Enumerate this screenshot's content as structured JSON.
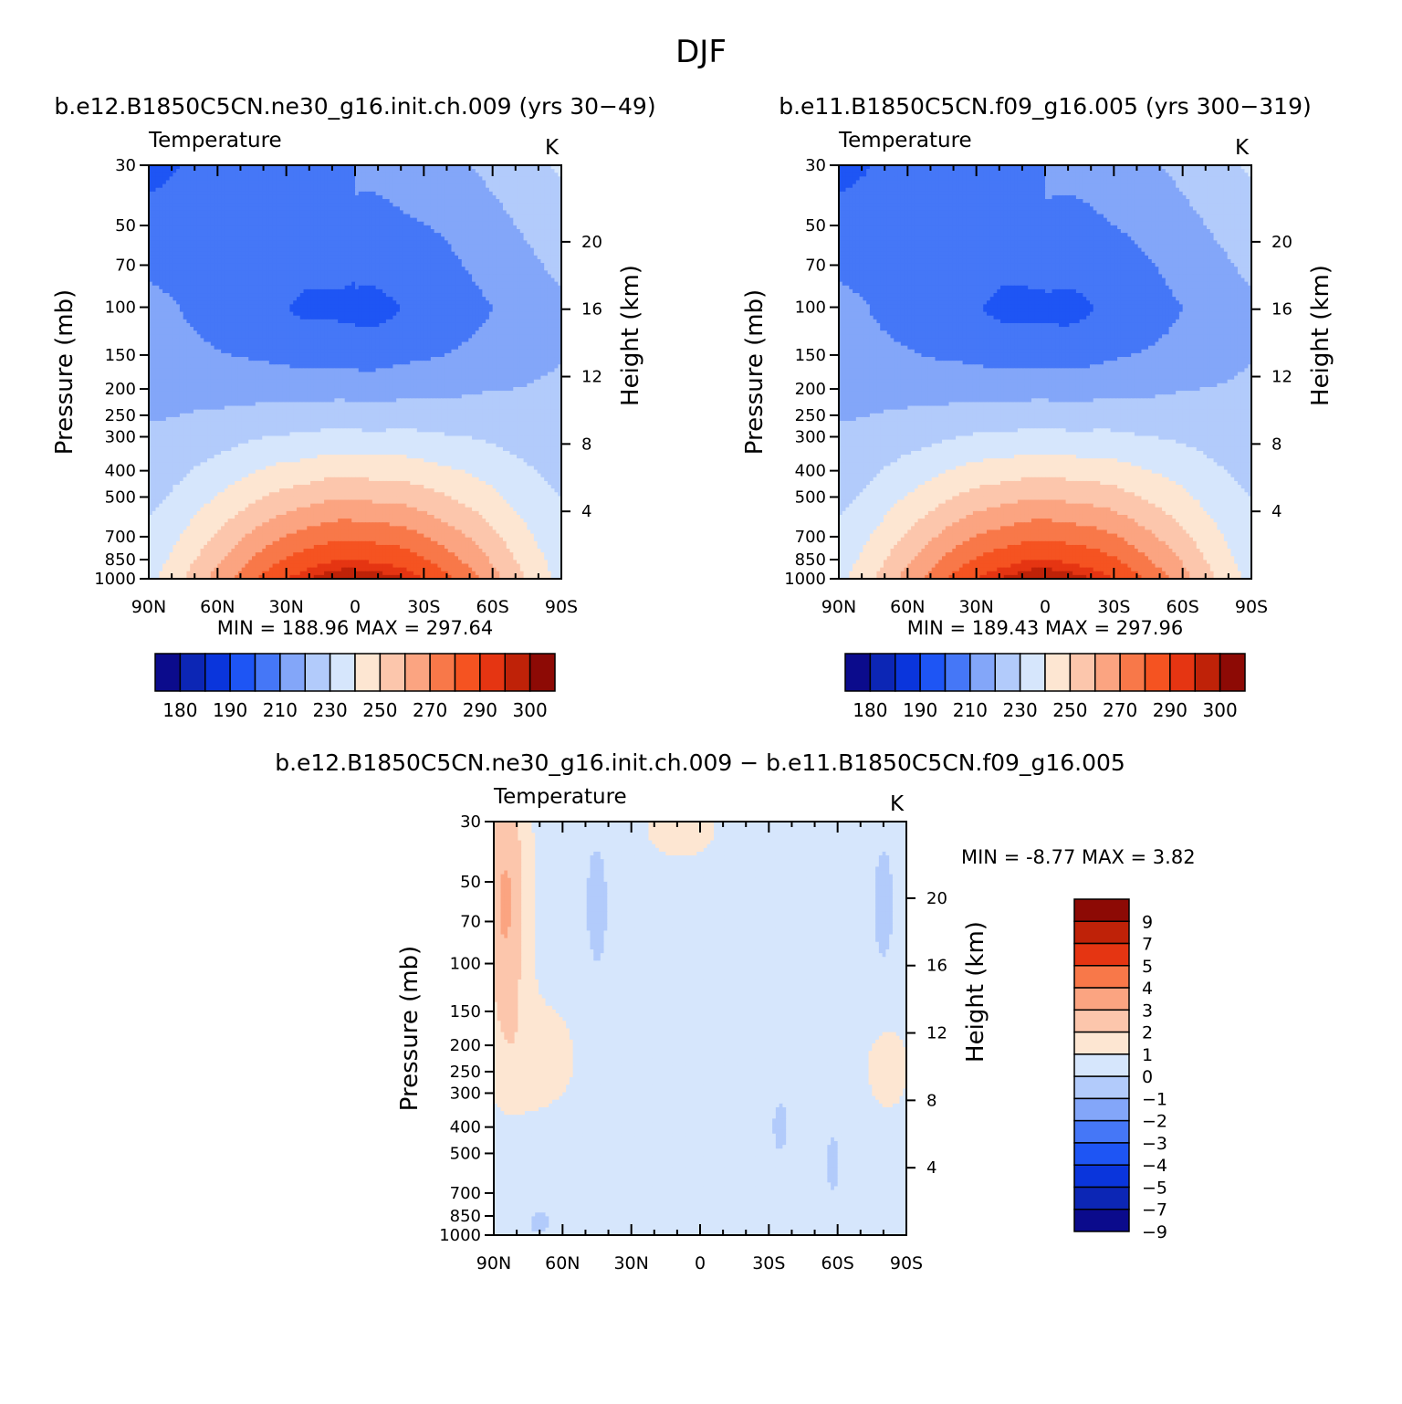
{
  "figure_title": "DJF",
  "colors": {
    "abs_palette": [
      "#0b0b8c",
      "#0c26b5",
      "#0a35dc",
      "#1e55f4",
      "#4577f7",
      "#83a6f9",
      "#b2cbfb",
      "#d6e6fc",
      "#fde6d2",
      "#fcc6ac",
      "#fba481",
      "#f87849",
      "#f55321",
      "#e53512",
      "#bf2208",
      "#8d0a05"
    ],
    "diff_palette": [
      "#0b0b8c",
      "#0c26b5",
      "#0a35dc",
      "#1e55f4",
      "#4577f7",
      "#83a6f9",
      "#b2cbfb",
      "#d6e6fc",
      "#fde6d2",
      "#fcc6ac",
      "#fba481",
      "#f87849",
      "#e53512",
      "#bf2208",
      "#8d0a05"
    ]
  },
  "chart_data": [
    {
      "type": "contour",
      "title": "b.e12.B1850C5CN.ne30_g16.init.ch.009 (yrs 30-49)",
      "variable_label": "Temperature",
      "units": "K",
      "ylabel": "Pressure (mb)",
      "y2label": "Height (km)",
      "x_ticks": [
        "90N",
        "60N",
        "30N",
        "0",
        "30S",
        "60S",
        "90S"
      ],
      "y_ticks": [
        30,
        50,
        70,
        100,
        150,
        200,
        250,
        300,
        400,
        500,
        700,
        850,
        1000
      ],
      "y2_ticks": [
        20,
        16,
        12,
        8,
        4
      ],
      "ylim": [
        1000,
        30
      ],
      "stats": "MIN =  188.96   MAX =  297.64",
      "min": 188.96,
      "max": 297.64,
      "colorbar_labels": [
        "180",
        "190",
        "210",
        "230",
        "250",
        "270",
        "290",
        "300"
      ]
    },
    {
      "type": "contour",
      "title": "b.e11.B1850C5CN.f09_g16.005 (yrs 300-319)",
      "variable_label": "Temperature",
      "units": "K",
      "ylabel": "Pressure (mb)",
      "y2label": "Height (km)",
      "x_ticks": [
        "90N",
        "60N",
        "30N",
        "0",
        "30S",
        "60S",
        "90S"
      ],
      "y_ticks": [
        30,
        50,
        70,
        100,
        150,
        200,
        250,
        300,
        400,
        500,
        700,
        850,
        1000
      ],
      "y2_ticks": [
        20,
        16,
        12,
        8,
        4
      ],
      "ylim": [
        1000,
        30
      ],
      "stats": "MIN =  189.43   MAX =  297.96",
      "min": 189.43,
      "max": 297.96,
      "colorbar_labels": [
        "180",
        "190",
        "210",
        "230",
        "250",
        "270",
        "290",
        "300"
      ]
    },
    {
      "type": "contour",
      "title": "b.e12.B1850C5CN.ne30_g16.init.ch.009 - b.e11.B1850C5CN.f09_g16.005",
      "variable_label": "Temperature",
      "units": "K",
      "ylabel": "Pressure (mb)",
      "y2label": "Height (km)",
      "x_ticks": [
        "90N",
        "60N",
        "30N",
        "0",
        "30S",
        "60S",
        "90S"
      ],
      "y_ticks": [
        30,
        50,
        70,
        100,
        150,
        200,
        250,
        300,
        400,
        500,
        700,
        850,
        1000
      ],
      "y2_ticks": [
        20,
        16,
        12,
        8,
        4
      ],
      "ylim": [
        1000,
        30
      ],
      "stats": "MIN =   -8.77   MAX =    3.82",
      "min": -8.77,
      "max": 3.82,
      "colorbar_labels": [
        "9",
        "7",
        "5",
        "4",
        "3",
        "2",
        "1",
        "0",
        "-1",
        "-2",
        "-3",
        "-4",
        "-5",
        "-7",
        "-9"
      ]
    }
  ]
}
